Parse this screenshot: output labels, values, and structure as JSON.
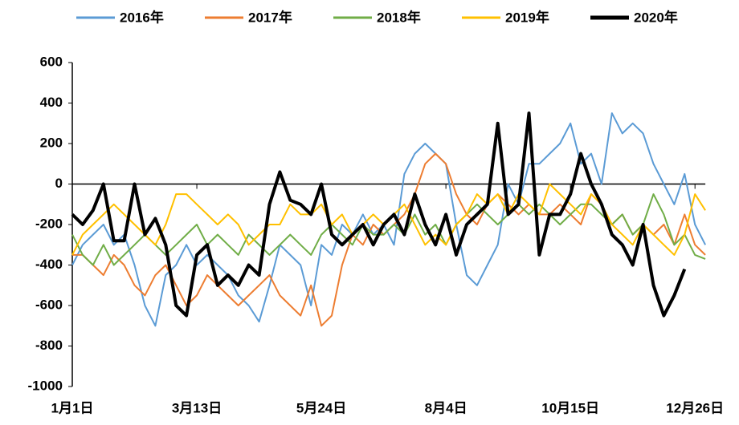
{
  "chart_data": {
    "type": "line",
    "categories": [
      "1月1日",
      null,
      null,
      null,
      null,
      null,
      null,
      null,
      null,
      null,
      null,
      null,
      "3月13日",
      null,
      null,
      null,
      null,
      null,
      null,
      null,
      null,
      null,
      null,
      null,
      "5月24日",
      null,
      null,
      null,
      null,
      null,
      null,
      null,
      null,
      null,
      null,
      null,
      "8月4日",
      null,
      null,
      null,
      null,
      null,
      null,
      null,
      null,
      null,
      null,
      null,
      "10月15日",
      null,
      null,
      null,
      null,
      null,
      null,
      null,
      null,
      null,
      null,
      null,
      "12月26日",
      null
    ],
    "series": [
      {
        "name": "2016年",
        "color": "#5b9bd5",
        "width": 2,
        "values": [
          -400,
          -300,
          -250,
          -200,
          -300,
          -250,
          -400,
          -600,
          -700,
          -450,
          -400,
          -300,
          -400,
          -350,
          -400,
          -450,
          -550,
          -600,
          -680,
          -500,
          -300,
          -350,
          -400,
          -600,
          -300,
          -350,
          -200,
          -250,
          -150,
          -250,
          -200,
          -300,
          50,
          150,
          200,
          150,
          100,
          -200,
          -450,
          -500,
          -400,
          -300,
          0,
          -100,
          100,
          100,
          150,
          200,
          300,
          100,
          150,
          0,
          350,
          250,
          300,
          250,
          100,
          0,
          -100,
          50,
          -200,
          -300
        ]
      },
      {
        "name": "2017年",
        "color": "#ed7d31",
        "width": 2,
        "values": [
          -350,
          -350,
          -400,
          -450,
          -350,
          -400,
          -500,
          -550,
          -450,
          -400,
          -500,
          -600,
          -550,
          -450,
          -500,
          -550,
          -600,
          -550,
          -500,
          -450,
          -550,
          -600,
          -650,
          -500,
          -700,
          -650,
          -400,
          -250,
          -300,
          -200,
          -250,
          -200,
          -150,
          -50,
          100,
          150,
          100,
          -50,
          -150,
          -200,
          -100,
          -50,
          -100,
          -150,
          -100,
          -150,
          -150,
          -100,
          -150,
          -200,
          -50,
          -100,
          -200,
          -150,
          -250,
          -200,
          -250,
          -200,
          -300,
          -150,
          -300,
          -350
        ]
      },
      {
        "name": "2018年",
        "color": "#70ad47",
        "width": 2,
        "values": [
          -250,
          -350,
          -400,
          -300,
          -400,
          -350,
          -300,
          -250,
          -300,
          -350,
          -300,
          -250,
          -200,
          -300,
          -250,
          -300,
          -350,
          -250,
          -300,
          -350,
          -300,
          -250,
          -300,
          -350,
          -250,
          -200,
          -250,
          -300,
          -200,
          -250,
          -250,
          -200,
          -250,
          -150,
          -250,
          -200,
          -300,
          -200,
          -150,
          -100,
          -150,
          -200,
          -150,
          -100,
          -150,
          -100,
          -150,
          -200,
          -150,
          -100,
          -100,
          -150,
          -200,
          -150,
          -250,
          -200,
          -50,
          -150,
          -300,
          -250,
          -350,
          -370
        ]
      },
      {
        "name": "2019年",
        "color": "#ffc000",
        "width": 2,
        "values": [
          -350,
          -250,
          -200,
          -150,
          -100,
          -150,
          -200,
          -250,
          -300,
          -200,
          -50,
          -50,
          -100,
          -150,
          -200,
          -150,
          -200,
          -300,
          -250,
          -200,
          -200,
          -100,
          -150,
          -150,
          -100,
          -200,
          -150,
          -250,
          -200,
          -150,
          -200,
          -150,
          -100,
          -200,
          -300,
          -250,
          -300,
          -200,
          -150,
          -50,
          -100,
          -50,
          -150,
          -50,
          -100,
          -150,
          0,
          -50,
          -100,
          -150,
          -50,
          -100,
          -200,
          -250,
          -300,
          -200,
          -250,
          -300,
          -350,
          -250,
          -50,
          -130
        ]
      },
      {
        "name": "2020年",
        "color": "#000000",
        "width": 4,
        "values": [
          -150,
          -200,
          -130,
          0,
          -280,
          -280,
          0,
          -250,
          -170,
          -300,
          -600,
          -650,
          -350,
          -300,
          -500,
          -450,
          -500,
          -400,
          -450,
          -100,
          60,
          -80,
          -100,
          -150,
          0,
          -250,
          -300,
          -250,
          -200,
          -300,
          -200,
          -150,
          -250,
          -50,
          -200,
          -300,
          -150,
          -350,
          -200,
          -150,
          -100,
          300,
          -150,
          -100,
          350,
          -350,
          -150,
          -150,
          -50,
          150,
          0,
          -100,
          -250,
          -300,
          -400,
          -200,
          -500,
          -650,
          -550,
          -420,
          null,
          null
        ]
      }
    ],
    "ylim": [
      -1000,
      600
    ],
    "yticks": [
      -1000,
      -800,
      -600,
      -400,
      -200,
      0,
      200,
      400,
      600
    ],
    "legend": "top"
  }
}
